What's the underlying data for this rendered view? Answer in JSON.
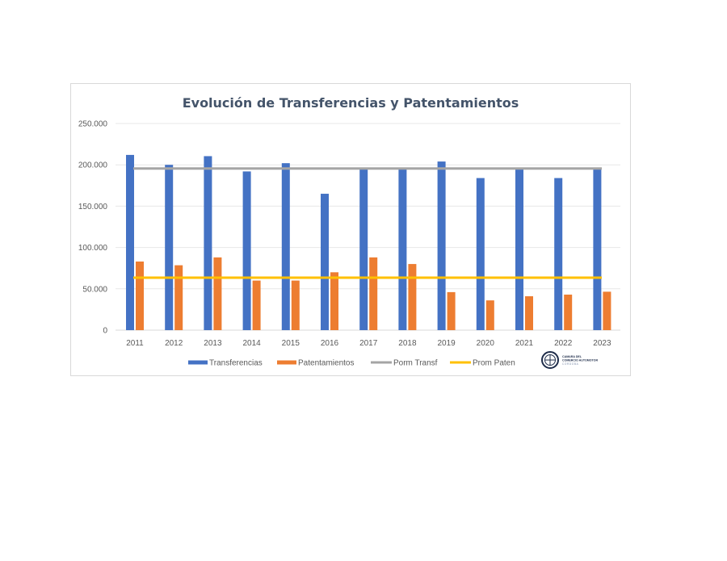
{
  "chart_data": {
    "type": "bar",
    "title": "Evolución de Transferencias y Patentamientos",
    "categories": [
      "2011",
      "2012",
      "2013",
      "2014",
      "2015",
      "2016",
      "2017",
      "2018",
      "2019",
      "2020",
      "2021",
      "2022",
      "2023"
    ],
    "series": [
      {
        "name": "Transferencias",
        "kind": "bar",
        "color": "#4472c4",
        "values": [
          212000,
          200000,
          210500,
          192000,
          202000,
          165000,
          195000,
          195000,
          204000,
          184000,
          195000,
          184000,
          195000
        ]
      },
      {
        "name": "Patentamientos",
        "kind": "bar",
        "color": "#ed7d31",
        "values": [
          83000,
          78500,
          88000,
          60000,
          60000,
          70000,
          88000,
          80000,
          46000,
          36000,
          41000,
          43000,
          46500
        ]
      },
      {
        "name": "Porm Transf",
        "kind": "line",
        "color": "#a5a5a5",
        "value": 195500
      },
      {
        "name": "Prom Paten",
        "kind": "line",
        "color": "#ffc000",
        "value": 63500
      }
    ],
    "ylim": [
      0,
      250000
    ],
    "yticks": [
      0,
      50000,
      100000,
      150000,
      200000,
      250000
    ],
    "ytick_labels": [
      "0",
      "50.000",
      "100.000",
      "150.000",
      "200.000",
      "250.000"
    ],
    "grid": true,
    "legend_position": "bottom"
  },
  "logo": {
    "line1": "CAMARA DEL",
    "line2": "COMERCIO AUTOMOTOR",
    "line3": "CORDOBA"
  }
}
